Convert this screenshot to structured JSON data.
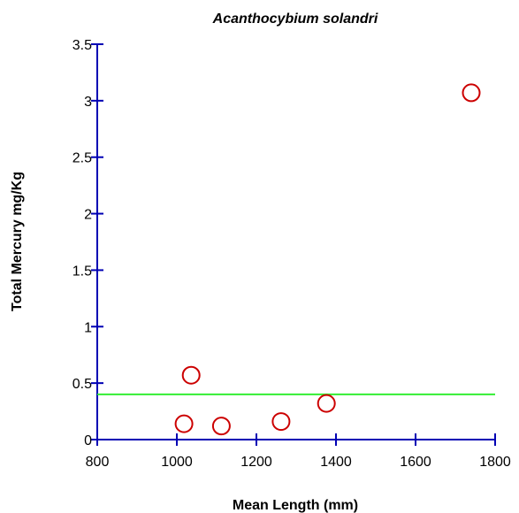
{
  "chart_data": {
    "type": "scatter",
    "title": "Acanthocybium solandri",
    "xlabel": "Mean Length (mm)",
    "ylabel": "Total Mercury mg/Kg",
    "xlim": [
      800,
      1800
    ],
    "ylim": [
      0,
      3.5
    ],
    "x_ticks": [
      "800",
      "1000",
      "1200",
      "1400",
      "1600",
      "1800"
    ],
    "y_ticks": [
      "0",
      "0.5",
      "1",
      "1.5",
      "2",
      "2.5",
      "3",
      "3.5"
    ],
    "points": [
      {
        "x": 1018,
        "y": 0.14
      },
      {
        "x": 1036,
        "y": 0.57
      },
      {
        "x": 1112,
        "y": 0.12
      },
      {
        "x": 1262,
        "y": 0.16
      },
      {
        "x": 1376,
        "y": 0.32
      },
      {
        "x": 1740,
        "y": 3.07
      }
    ],
    "reference_line": {
      "y": 0.4
    },
    "grid": false,
    "legend": "none",
    "colors": {
      "axis": "#0000b4",
      "marker": "#cc0000",
      "reference_line": "#33ee33"
    }
  }
}
